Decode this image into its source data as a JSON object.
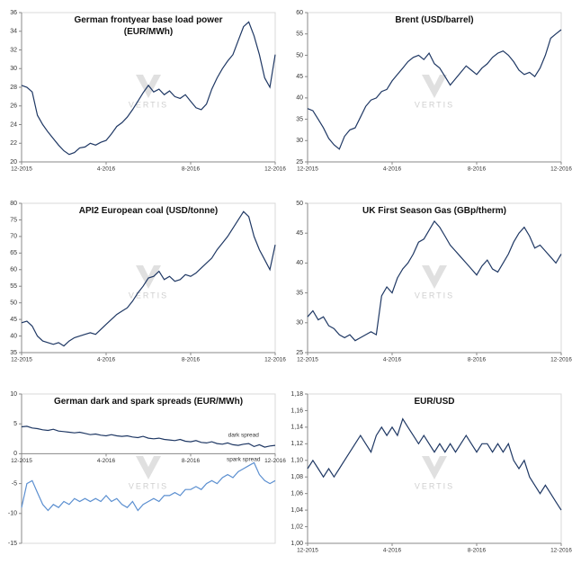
{
  "chart_data": [
    {
      "type": "line",
      "title": "German frontyear base load power (EUR/MWh)",
      "watermark": "VERTIS",
      "categories": [
        "12-2015",
        null,
        null,
        null,
        null,
        null,
        null,
        null,
        null,
        null,
        null,
        null,
        null,
        null,
        null,
        null,
        "4-2016",
        null,
        null,
        null,
        null,
        null,
        null,
        null,
        null,
        null,
        null,
        null,
        null,
        null,
        null,
        null,
        "8-2016",
        null,
        null,
        null,
        null,
        null,
        null,
        null,
        null,
        null,
        null,
        null,
        null,
        null,
        null,
        null,
        "12-2016"
      ],
      "series": [
        {
          "color": "#1f3864",
          "values": [
            28.2,
            28.0,
            27.5,
            25.0,
            24.0,
            23.2,
            22.5,
            21.8,
            21.2,
            20.8,
            21.0,
            21.5,
            21.6,
            22.0,
            21.8,
            22.1,
            22.3,
            23.0,
            23.8,
            24.2,
            24.8,
            25.6,
            26.5,
            27.4,
            28.2,
            27.5,
            27.8,
            27.2,
            27.6,
            27.0,
            26.8,
            27.2,
            26.5,
            25.8,
            25.6,
            26.2,
            27.8,
            29.0,
            30.0,
            30.8,
            31.5,
            33.0,
            34.5,
            35.0,
            33.5,
            31.5,
            29.0,
            28.0,
            31.5
          ]
        }
      ],
      "ylim": [
        20,
        36
      ],
      "yticks": [
        20,
        22,
        24,
        26,
        28,
        30,
        32,
        34,
        36
      ]
    },
    {
      "type": "line",
      "title": "Brent (USD/barrel)",
      "watermark": "VERTIS",
      "categories": [
        "12-2015",
        null,
        null,
        null,
        null,
        null,
        null,
        null,
        null,
        null,
        null,
        null,
        null,
        null,
        null,
        null,
        "4-2016",
        null,
        null,
        null,
        null,
        null,
        null,
        null,
        null,
        null,
        null,
        null,
        null,
        null,
        null,
        null,
        "8-2016",
        null,
        null,
        null,
        null,
        null,
        null,
        null,
        null,
        null,
        null,
        null,
        null,
        null,
        null,
        null,
        "12-2016"
      ],
      "series": [
        {
          "color": "#1f3864",
          "values": [
            37.5,
            37.0,
            35.0,
            33.0,
            30.5,
            29.0,
            28.0,
            31.0,
            32.5,
            33.0,
            35.5,
            38.0,
            39.5,
            40.0,
            41.5,
            42.0,
            44.0,
            45.5,
            47.0,
            48.5,
            49.5,
            50.0,
            49.0,
            50.5,
            48.0,
            47.0,
            45.0,
            43.0,
            44.5,
            46.0,
            47.5,
            46.5,
            45.5,
            47.0,
            48.0,
            49.5,
            50.5,
            51.0,
            50.0,
            48.5,
            46.5,
            45.5,
            46.0,
            45.0,
            47.0,
            50.0,
            54.0,
            55.0,
            56.0
          ]
        }
      ],
      "ylim": [
        25,
        60
      ],
      "yticks": [
        25,
        30,
        35,
        40,
        45,
        50,
        55,
        60
      ]
    },
    {
      "type": "line",
      "title": "API2 European coal (USD/tonne)",
      "watermark": "VERTIS",
      "categories": [
        "12-2015",
        null,
        null,
        null,
        null,
        null,
        null,
        null,
        null,
        null,
        null,
        null,
        null,
        null,
        null,
        null,
        "4-2016",
        null,
        null,
        null,
        null,
        null,
        null,
        null,
        null,
        null,
        null,
        null,
        null,
        null,
        null,
        null,
        "8-2016",
        null,
        null,
        null,
        null,
        null,
        null,
        null,
        null,
        null,
        null,
        null,
        null,
        null,
        null,
        null,
        "12-2016"
      ],
      "series": [
        {
          "color": "#1f3864",
          "values": [
            44.0,
            44.5,
            43.0,
            40.0,
            38.5,
            38.0,
            37.5,
            38.0,
            37.0,
            38.5,
            39.5,
            40.0,
            40.5,
            41.0,
            40.5,
            42.0,
            43.5,
            45.0,
            46.5,
            47.5,
            48.5,
            50.5,
            53.0,
            55.0,
            57.5,
            58.0,
            59.5,
            57.0,
            58.0,
            56.5,
            57.0,
            58.5,
            58.0,
            59.0,
            60.5,
            62.0,
            63.5,
            66.0,
            68.0,
            70.0,
            72.5,
            75.0,
            77.5,
            76.0,
            70.0,
            66.0,
            63.0,
            60.0,
            67.5
          ]
        }
      ],
      "ylim": [
        35,
        80
      ],
      "yticks": [
        35,
        40,
        45,
        50,
        55,
        60,
        65,
        70,
        75,
        80
      ]
    },
    {
      "type": "line",
      "title": "UK First Season Gas (GBp/therm)",
      "watermark": "VERTIS",
      "categories": [
        "12-2015",
        null,
        null,
        null,
        null,
        null,
        null,
        null,
        null,
        null,
        null,
        null,
        null,
        null,
        null,
        null,
        "4-2016",
        null,
        null,
        null,
        null,
        null,
        null,
        null,
        null,
        null,
        null,
        null,
        null,
        null,
        null,
        null,
        "8-2016",
        null,
        null,
        null,
        null,
        null,
        null,
        null,
        null,
        null,
        null,
        null,
        null,
        null,
        null,
        null,
        "12-2016"
      ],
      "series": [
        {
          "color": "#1f3864",
          "values": [
            31.0,
            32.0,
            30.5,
            31.0,
            29.5,
            29.0,
            28.0,
            27.5,
            28.0,
            27.0,
            27.5,
            28.0,
            28.5,
            28.0,
            34.5,
            36.0,
            35.0,
            37.5,
            39.0,
            40.0,
            41.5,
            43.5,
            44.0,
            45.5,
            47.0,
            46.0,
            44.5,
            43.0,
            42.0,
            41.0,
            40.0,
            39.0,
            38.0,
            39.5,
            40.5,
            39.0,
            38.5,
            40.0,
            41.5,
            43.5,
            45.0,
            46.0,
            44.5,
            42.5,
            43.0,
            42.0,
            41.0,
            40.0,
            41.5
          ]
        }
      ],
      "ylim": [
        25,
        50
      ],
      "yticks": [
        25,
        30,
        35,
        40,
        45,
        50
      ]
    },
    {
      "type": "line",
      "title": "German dark and spark spreads (EUR/MWh)",
      "watermark": "VERTIS",
      "categories": [
        "12-2015",
        null,
        null,
        null,
        null,
        null,
        null,
        null,
        null,
        null,
        null,
        null,
        null,
        null,
        null,
        null,
        "4-2016",
        null,
        null,
        null,
        null,
        null,
        null,
        null,
        null,
        null,
        null,
        null,
        null,
        null,
        null,
        null,
        "8-2016",
        null,
        null,
        null,
        null,
        null,
        null,
        null,
        null,
        null,
        null,
        null,
        null,
        null,
        null,
        null,
        "12-2016"
      ],
      "series": [
        {
          "name": "dark spread",
          "color": "#1f3864",
          "values": [
            4.5,
            4.6,
            4.3,
            4.2,
            4.0,
            3.9,
            4.1,
            3.8,
            3.7,
            3.6,
            3.5,
            3.6,
            3.4,
            3.2,
            3.3,
            3.1,
            3.0,
            3.2,
            3.0,
            2.9,
            3.0,
            2.8,
            2.7,
            2.9,
            2.6,
            2.5,
            2.6,
            2.4,
            2.3,
            2.2,
            2.4,
            2.1,
            2.0,
            2.2,
            1.9,
            1.8,
            2.0,
            1.7,
            1.6,
            1.8,
            1.5,
            1.4,
            1.6,
            1.7,
            1.2,
            1.5,
            1.1,
            1.3,
            1.4
          ]
        },
        {
          "name": "spark spread",
          "color": "#5b8fd0",
          "values": [
            -9.0,
            -5.0,
            -4.5,
            -6.5,
            -8.5,
            -9.5,
            -8.5,
            -9.0,
            -8.0,
            -8.5,
            -7.5,
            -8.0,
            -7.5,
            -8.0,
            -7.5,
            -8.0,
            -7.0,
            -8.0,
            -7.5,
            -8.5,
            -9.0,
            -8.0,
            -9.5,
            -8.5,
            -8.0,
            -7.5,
            -8.0,
            -7.0,
            -7.0,
            -6.5,
            -7.0,
            -6.0,
            -6.0,
            -5.5,
            -6.0,
            -5.0,
            -4.5,
            -5.0,
            -4.0,
            -3.5,
            -4.0,
            -3.0,
            -2.5,
            -2.0,
            -1.5,
            -3.5,
            -4.5,
            -5.0,
            -4.5
          ]
        }
      ],
      "ylim": [
        -15,
        10
      ],
      "yticks": [
        -15,
        -10,
        -5,
        0,
        5,
        10
      ]
    },
    {
      "type": "line",
      "title": "EUR/USD",
      "watermark": "VERTIS",
      "categories": [
        "12-2015",
        null,
        null,
        null,
        null,
        null,
        null,
        null,
        null,
        null,
        null,
        null,
        null,
        null,
        null,
        null,
        "4-2016",
        null,
        null,
        null,
        null,
        null,
        null,
        null,
        null,
        null,
        null,
        null,
        null,
        null,
        null,
        null,
        "8-2016",
        null,
        null,
        null,
        null,
        null,
        null,
        null,
        null,
        null,
        null,
        null,
        null,
        null,
        null,
        null,
        "12-2016"
      ],
      "series": [
        {
          "color": "#1f3864",
          "values": [
            1.09,
            1.1,
            1.09,
            1.08,
            1.09,
            1.08,
            1.09,
            1.1,
            1.11,
            1.12,
            1.13,
            1.12,
            1.11,
            1.13,
            1.14,
            1.13,
            1.14,
            1.13,
            1.15,
            1.14,
            1.13,
            1.12,
            1.13,
            1.12,
            1.11,
            1.12,
            1.11,
            1.12,
            1.11,
            1.12,
            1.13,
            1.12,
            1.11,
            1.12,
            1.12,
            1.11,
            1.12,
            1.11,
            1.12,
            1.1,
            1.09,
            1.1,
            1.08,
            1.07,
            1.06,
            1.07,
            1.06,
            1.05,
            1.04
          ]
        }
      ],
      "ylim": [
        1.0,
        1.18
      ],
      "yticks": [
        {
          "value": 1.0,
          "label": "1,00"
        },
        {
          "value": 1.02,
          "label": "1,02"
        },
        {
          "value": 1.04,
          "label": "1,04"
        },
        {
          "value": 1.06,
          "label": "1,06"
        },
        {
          "value": 1.08,
          "label": "1,08"
        },
        {
          "value": 1.1,
          "label": "1,10"
        },
        {
          "value": 1.12,
          "label": "1,12"
        },
        {
          "value": 1.14,
          "label": "1,14"
        },
        {
          "value": 1.16,
          "label": "1,16"
        },
        {
          "value": 1.18,
          "label": "1,18"
        }
      ]
    }
  ]
}
